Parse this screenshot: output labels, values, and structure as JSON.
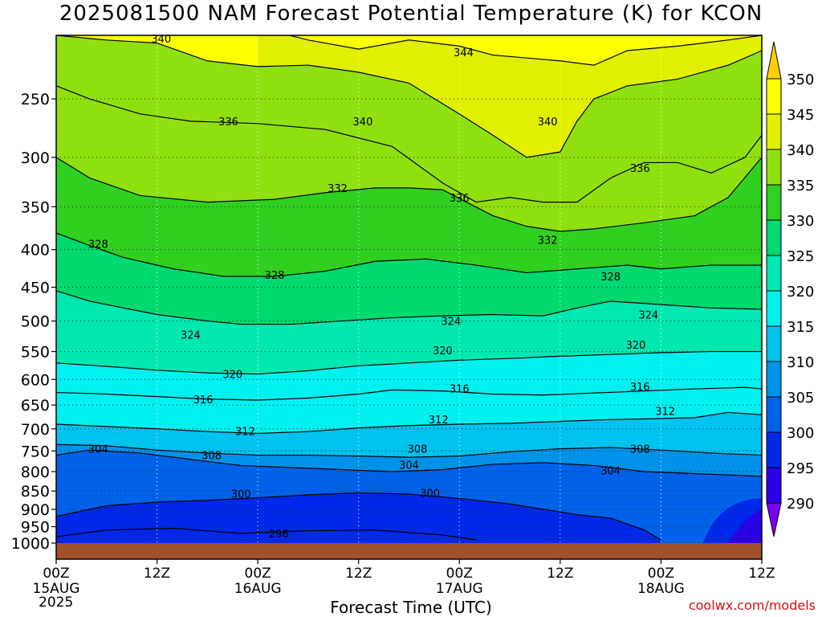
{
  "title": "2025081500 NAM Forecast Potential Temperature (K) for KCON",
  "credit": "coolwx.com/models",
  "chart_data": {
    "type": "heatmap",
    "title": "2025081500 NAM Forecast Potential Temperature (K) for KCON",
    "xlabel": "Forecast Time (UTC)",
    "ylabel": "",
    "y_scale": "log",
    "y_inverted": true,
    "ylim": [
      1035,
      200
    ],
    "xlim": [
      0,
      84
    ],
    "x_ticks": [
      {
        "hour": 0,
        "label": "00Z",
        "date": "15AUG",
        "year": "2025"
      },
      {
        "hour": 12,
        "label": "12Z",
        "date": "",
        "year": ""
      },
      {
        "hour": 24,
        "label": "00Z",
        "date": "16AUG",
        "year": ""
      },
      {
        "hour": 36,
        "label": "12Z",
        "date": "",
        "year": ""
      },
      {
        "hour": 48,
        "label": "00Z",
        "date": "17AUG",
        "year": ""
      },
      {
        "hour": 60,
        "label": "12Z",
        "date": "",
        "year": ""
      },
      {
        "hour": 72,
        "label": "00Z",
        "date": "18AUG",
        "year": ""
      },
      {
        "hour": 84,
        "label": "12Z",
        "date": "",
        "year": ""
      }
    ],
    "y_ticks": [
      250,
      300,
      350,
      400,
      450,
      500,
      550,
      600,
      650,
      700,
      750,
      800,
      850,
      900,
      950,
      1000
    ],
    "grid": "dotted",
    "colorbar": {
      "levels": [
        290,
        295,
        300,
        305,
        310,
        315,
        320,
        325,
        330,
        335,
        340,
        345,
        350
      ],
      "colors": [
        "#7a00f0",
        "#2a00e6",
        "#0028e8",
        "#0062e8",
        "#0092e8",
        "#00c2ee",
        "#00f0f0",
        "#00e8b0",
        "#00d870",
        "#30d020",
        "#90e010",
        "#e0f000",
        "#ffff00",
        "#ffd000"
      ],
      "extend": "both"
    },
    "ground_color": "#a0522d",
    "contour_lines": [
      {
        "value": 296,
        "label": "296",
        "points": [
          [
            0,
            980
          ],
          [
            6,
            960
          ],
          [
            14,
            955
          ],
          [
            22,
            970
          ],
          [
            30,
            962
          ],
          [
            38,
            960
          ],
          [
            46,
            975
          ],
          [
            50,
            990
          ]
        ]
      },
      {
        "value": 300,
        "label": "300",
        "points": [
          [
            0,
            920
          ],
          [
            6,
            890
          ],
          [
            12,
            880
          ],
          [
            18,
            875
          ],
          [
            24,
            868
          ],
          [
            30,
            860
          ],
          [
            36,
            855
          ],
          [
            42,
            858
          ],
          [
            48,
            870
          ],
          [
            54,
            885
          ],
          [
            58,
            900
          ],
          [
            62,
            915
          ],
          [
            66,
            925
          ],
          [
            70,
            960
          ],
          [
            72,
            990
          ]
        ]
      },
      {
        "value": 304,
        "label": "304",
        "points": [
          [
            0,
            760
          ],
          [
            4,
            748
          ],
          [
            10,
            755
          ],
          [
            16,
            770
          ],
          [
            22,
            785
          ],
          [
            28,
            790
          ],
          [
            34,
            795
          ],
          [
            40,
            800
          ],
          [
            46,
            795
          ],
          [
            52,
            782
          ],
          [
            58,
            778
          ],
          [
            64,
            785
          ],
          [
            70,
            800
          ],
          [
            76,
            805
          ],
          [
            82,
            810
          ],
          [
            84,
            812
          ]
        ]
      },
      {
        "value": 308,
        "label": "308",
        "points": [
          [
            0,
            735
          ],
          [
            6,
            738
          ],
          [
            12,
            748
          ],
          [
            18,
            755
          ],
          [
            24,
            760
          ],
          [
            30,
            760
          ],
          [
            36,
            762
          ],
          [
            42,
            765
          ],
          [
            48,
            762
          ],
          [
            54,
            752
          ],
          [
            60,
            745
          ],
          [
            66,
            742
          ],
          [
            72,
            748
          ],
          [
            78,
            755
          ],
          [
            84,
            760
          ]
        ]
      },
      {
        "value": 312,
        "label": "312",
        "points": [
          [
            0,
            690
          ],
          [
            6,
            695
          ],
          [
            12,
            700
          ],
          [
            18,
            706
          ],
          [
            24,
            710
          ],
          [
            30,
            706
          ],
          [
            36,
            698
          ],
          [
            42,
            693
          ],
          [
            48,
            690
          ],
          [
            54,
            688
          ],
          [
            60,
            684
          ],
          [
            66,
            680
          ],
          [
            72,
            678
          ],
          [
            76,
            676
          ],
          [
            80,
            665
          ],
          [
            84,
            670
          ]
        ]
      },
      {
        "value": 316,
        "label": "316",
        "points": [
          [
            0,
            625
          ],
          [
            6,
            628
          ],
          [
            12,
            633
          ],
          [
            18,
            638
          ],
          [
            24,
            640
          ],
          [
            30,
            636
          ],
          [
            36,
            628
          ],
          [
            40,
            620
          ],
          [
            46,
            622
          ],
          [
            52,
            628
          ],
          [
            58,
            630
          ],
          [
            64,
            626
          ],
          [
            70,
            622
          ],
          [
            76,
            618
          ],
          [
            82,
            615
          ],
          [
            84,
            618
          ]
        ]
      },
      {
        "value": 320,
        "label": "320",
        "points": [
          [
            0,
            570
          ],
          [
            6,
            576
          ],
          [
            12,
            583
          ],
          [
            18,
            588
          ],
          [
            24,
            590
          ],
          [
            30,
            584
          ],
          [
            36,
            575
          ],
          [
            42,
            570
          ],
          [
            48,
            565
          ],
          [
            54,
            562
          ],
          [
            60,
            558
          ],
          [
            66,
            555
          ],
          [
            72,
            552
          ],
          [
            78,
            550
          ],
          [
            84,
            550
          ]
        ]
      },
      {
        "value": 324,
        "label": "324",
        "points": [
          [
            0,
            455
          ],
          [
            4,
            470
          ],
          [
            8,
            480
          ],
          [
            12,
            490
          ],
          [
            18,
            500
          ],
          [
            22,
            505
          ],
          [
            28,
            505
          ],
          [
            34,
            500
          ],
          [
            40,
            495
          ],
          [
            46,
            492
          ],
          [
            52,
            490
          ],
          [
            58,
            492
          ],
          [
            62,
            480
          ],
          [
            66,
            470
          ],
          [
            72,
            475
          ],
          [
            78,
            480
          ],
          [
            84,
            482
          ]
        ]
      },
      {
        "value": 328,
        "label": "328",
        "points": [
          [
            0,
            380
          ],
          [
            4,
            395
          ],
          [
            8,
            410
          ],
          [
            14,
            425
          ],
          [
            20,
            435
          ],
          [
            26,
            435
          ],
          [
            32,
            428
          ],
          [
            38,
            415
          ],
          [
            44,
            412
          ],
          [
            50,
            420
          ],
          [
            56,
            430
          ],
          [
            62,
            425
          ],
          [
            68,
            420
          ],
          [
            72,
            425
          ],
          [
            78,
            420
          ],
          [
            84,
            420
          ]
        ]
      },
      {
        "value": 332,
        "label": "332",
        "points": [
          [
            0,
            300
          ],
          [
            4,
            320
          ],
          [
            10,
            338
          ],
          [
            18,
            345
          ],
          [
            26,
            342
          ],
          [
            32,
            335
          ],
          [
            38,
            330
          ],
          [
            42,
            330
          ],
          [
            46,
            332
          ],
          [
            52,
            360
          ],
          [
            56,
            372
          ],
          [
            60,
            378
          ],
          [
            64,
            375
          ],
          [
            70,
            368
          ],
          [
            76,
            360
          ],
          [
            80,
            340
          ],
          [
            84,
            300
          ]
        ]
      },
      {
        "value": 336,
        "label": "336",
        "points": [
          [
            0,
            240
          ],
          [
            4,
            250
          ],
          [
            10,
            262
          ],
          [
            16,
            268
          ],
          [
            24,
            270
          ],
          [
            32,
            275
          ],
          [
            40,
            290
          ],
          [
            46,
            325
          ],
          [
            50,
            345
          ],
          [
            54,
            340
          ],
          [
            58,
            345
          ],
          [
            62,
            345
          ],
          [
            66,
            320
          ],
          [
            70,
            305
          ],
          [
            74,
            305
          ],
          [
            78,
            315
          ],
          [
            82,
            300
          ],
          [
            84,
            280
          ]
        ]
      },
      {
        "value": 340,
        "label": "340",
        "points": [
          [
            0,
            205
          ],
          [
            6,
            208
          ],
          [
            12,
            210
          ],
          [
            18,
            222
          ],
          [
            24,
            226
          ],
          [
            30,
            225
          ],
          [
            36,
            230
          ],
          [
            42,
            238
          ],
          [
            48,
            262
          ],
          [
            52,
            280
          ],
          [
            56,
            300
          ],
          [
            60,
            295
          ],
          [
            62,
            268
          ],
          [
            64,
            250
          ],
          [
            68,
            240
          ],
          [
            74,
            235
          ],
          [
            80,
            225
          ],
          [
            84,
            215
          ]
        ]
      },
      {
        "value": 344,
        "label": "344",
        "points": [
          [
            24,
            200
          ],
          [
            30,
            208
          ],
          [
            36,
            214
          ],
          [
            42,
            208
          ],
          [
            48,
            212
          ],
          [
            52,
            218
          ],
          [
            56,
            220
          ],
          [
            60,
            222
          ],
          [
            64,
            225
          ],
          [
            68,
            215
          ],
          [
            74,
            212
          ],
          [
            80,
            208
          ],
          [
            84,
            205
          ]
        ]
      }
    ],
    "contour_labels": [
      {
        "text": "340",
        "x": 12.5,
        "y": 207
      },
      {
        "text": "344",
        "x": 48.5,
        "y": 216
      },
      {
        "text": "336",
        "x": 20.5,
        "y": 268
      },
      {
        "text": "340",
        "x": 36.5,
        "y": 268
      },
      {
        "text": "340",
        "x": 58.5,
        "y": 268
      },
      {
        "text": "336",
        "x": 69.5,
        "y": 310
      },
      {
        "text": "332",
        "x": 33.5,
        "y": 330
      },
      {
        "text": "336",
        "x": 48,
        "y": 340
      },
      {
        "text": "328",
        "x": 5,
        "y": 393
      },
      {
        "text": "332",
        "x": 58.5,
        "y": 388
      },
      {
        "text": "328",
        "x": 26,
        "y": 433
      },
      {
        "text": "328",
        "x": 66,
        "y": 435
      },
      {
        "text": "324",
        "x": 70.5,
        "y": 490
      },
      {
        "text": "324",
        "x": 47,
        "y": 500
      },
      {
        "text": "324",
        "x": 16,
        "y": 522
      },
      {
        "text": "320",
        "x": 46,
        "y": 548
      },
      {
        "text": "320",
        "x": 69,
        "y": 538
      },
      {
        "text": "320",
        "x": 21,
        "y": 590
      },
      {
        "text": "316",
        "x": 69.5,
        "y": 613
      },
      {
        "text": "316",
        "x": 48,
        "y": 617
      },
      {
        "text": "316",
        "x": 17.5,
        "y": 638
      },
      {
        "text": "312",
        "x": 72.5,
        "y": 662
      },
      {
        "text": "312",
        "x": 45.5,
        "y": 680
      },
      {
        "text": "312",
        "x": 22.5,
        "y": 705
      },
      {
        "text": "304",
        "x": 5,
        "y": 745
      },
      {
        "text": "308",
        "x": 43,
        "y": 745
      },
      {
        "text": "308",
        "x": 69.5,
        "y": 745
      },
      {
        "text": "308",
        "x": 18.5,
        "y": 760
      },
      {
        "text": "304",
        "x": 42,
        "y": 783
      },
      {
        "text": "304",
        "x": 66,
        "y": 797
      },
      {
        "text": "300",
        "x": 22,
        "y": 857
      },
      {
        "text": "300",
        "x": 44.5,
        "y": 855
      },
      {
        "text": "296",
        "x": 26.5,
        "y": 970
      }
    ]
  }
}
